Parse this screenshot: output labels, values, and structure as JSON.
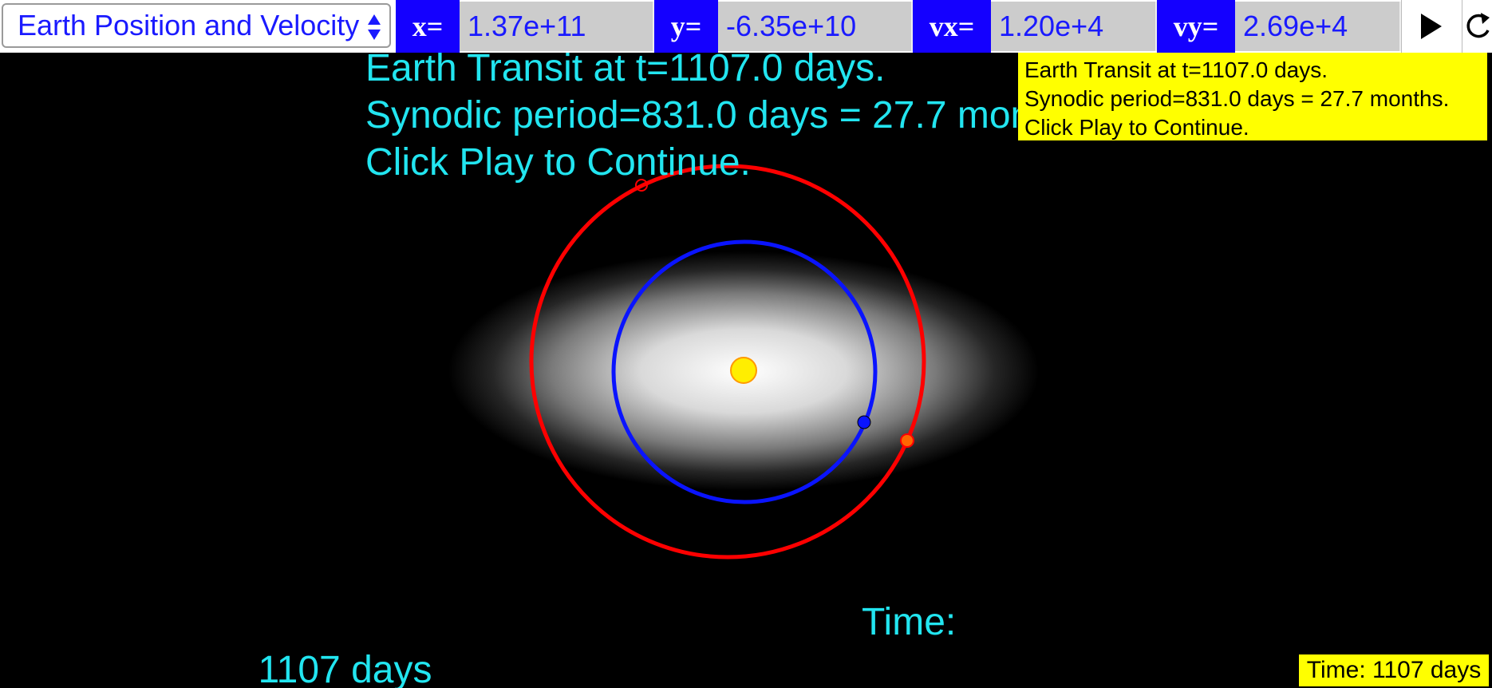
{
  "toolbar": {
    "select_value": "Earth Position and Velocity",
    "x_label": "x=",
    "x_value": "1.37e+11",
    "y_label": "y=",
    "y_value": "-6.35e+10",
    "vx_label": "vx=",
    "vx_value": "1.20e+4",
    "vy_label": "vy=",
    "vy_value": "2.69e+4",
    "play_icon": "play-icon",
    "reset_icon": "reset-icon"
  },
  "message": {
    "line1": "Earth Transit at t=1107.0 days.",
    "line2": "Synodic period=831.0 days = 27.7 months.",
    "line3": "Click Play to Continue."
  },
  "time_text": "Time: 1107 days",
  "colors": {
    "accent_blue": "#1400ff",
    "message_cyan": "#22e5f0",
    "status_yellow": "#ffff00",
    "outer_orbit": "#ff0000",
    "inner_orbit": "#0a14ff",
    "sun": "#ffee00"
  }
}
